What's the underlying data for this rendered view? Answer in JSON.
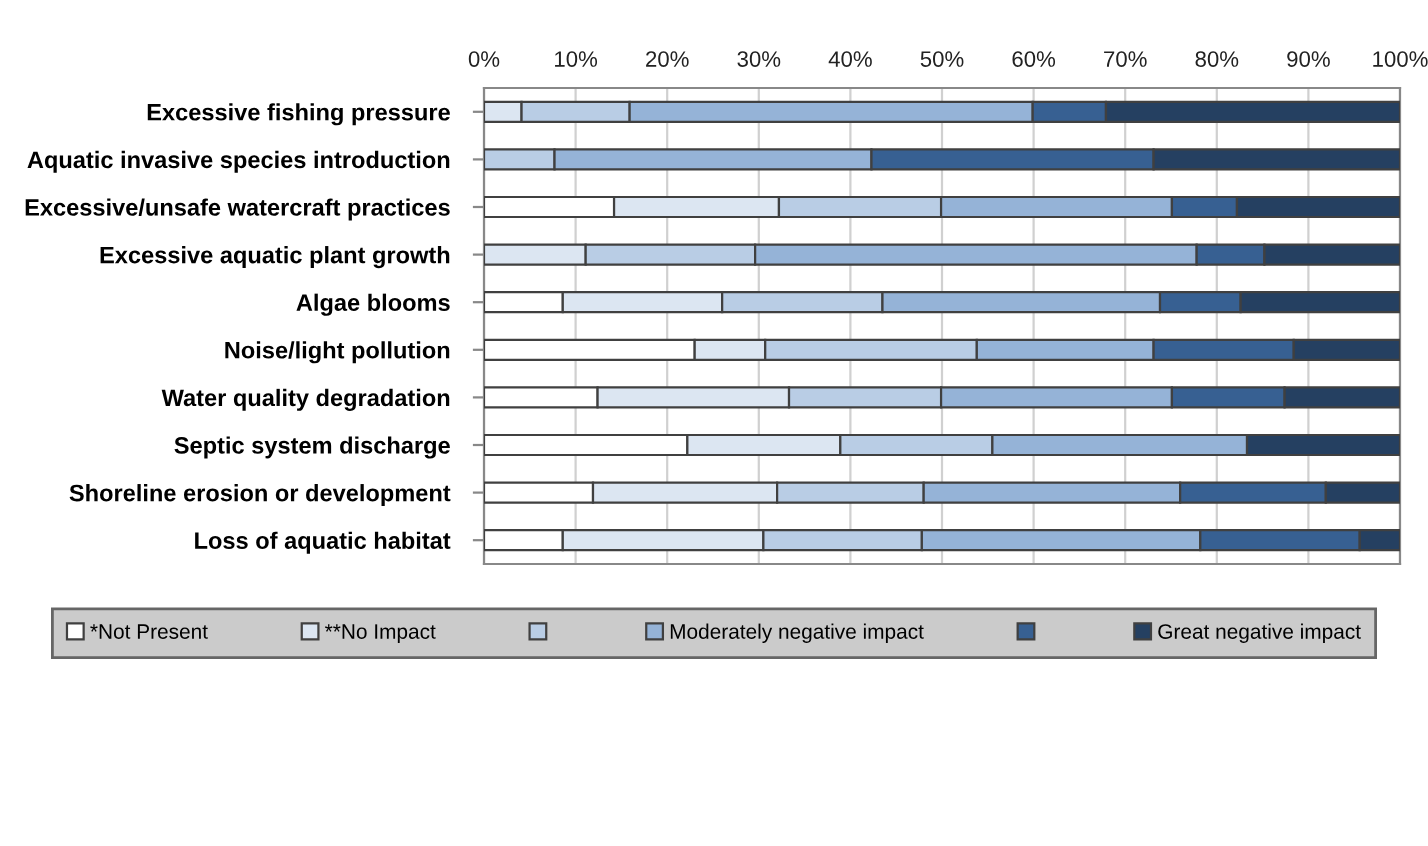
{
  "chart_data": {
    "type": "bar",
    "orientation": "horizontal",
    "stacked": true,
    "categories": [
      "Excessive fishing pressure",
      "Aquatic invasive species introduction",
      "Excessive/unsafe watercraft practices",
      "Excessive aquatic plant growth",
      "Algae blooms",
      "Noise/light pollution",
      "Water quality degradation",
      "Septic system discharge",
      "Shoreline erosion or development",
      "Loss of aquatic habitat"
    ],
    "series": [
      {
        "name": "*Not Present",
        "color": "#ffffff",
        "values": [
          0,
          0,
          14.2,
          0,
          8.6,
          23.0,
          12.4,
          22.2,
          11.9,
          8.6
        ]
      },
      {
        "name": "**No Impact",
        "color": "#dce6f2",
        "values": [
          4.1,
          0,
          18.0,
          11.1,
          17.4,
          7.7,
          20.9,
          16.7,
          20.1,
          21.9
        ]
      },
      {
        "color": "#b9cde5",
        "values": [
          11.8,
          7.7,
          17.7,
          18.5,
          17.5,
          23.1,
          16.6,
          16.6,
          16.0,
          17.3
        ]
      },
      {
        "name": "Moderately negative impact",
        "color": "#95b3d7",
        "values": [
          44.0,
          34.6,
          25.2,
          48.2,
          30.3,
          19.3,
          25.2,
          27.8,
          28.0,
          30.4
        ]
      },
      {
        "color": "#376092",
        "values": [
          8.0,
          30.8,
          7.1,
          7.4,
          8.8,
          15.3,
          12.3,
          0,
          15.9,
          17.4
        ]
      },
      {
        "name": "Great negative impact",
        "color": "#254061",
        "values": [
          32.1,
          26.9,
          17.8,
          14.8,
          17.4,
          11.6,
          12.6,
          16.7,
          8.1,
          4.4
        ]
      }
    ],
    "xlim": [
      0,
      100
    ],
    "xticks": [
      {
        "value": 0,
        "label": "0%"
      },
      {
        "value": 10,
        "label": "10%"
      },
      {
        "value": 20,
        "label": "20%"
      },
      {
        "value": 30,
        "label": "30%"
      },
      {
        "value": 40,
        "label": "40%"
      },
      {
        "value": 50,
        "label": "50%"
      },
      {
        "value": 60,
        "label": "60%"
      },
      {
        "value": 70,
        "label": "70%"
      },
      {
        "value": 80,
        "label": "80%"
      },
      {
        "value": 90,
        "label": "90%"
      },
      {
        "value": 100,
        "label": "100%"
      }
    ],
    "grid": "x",
    "legend": "bottom"
  }
}
